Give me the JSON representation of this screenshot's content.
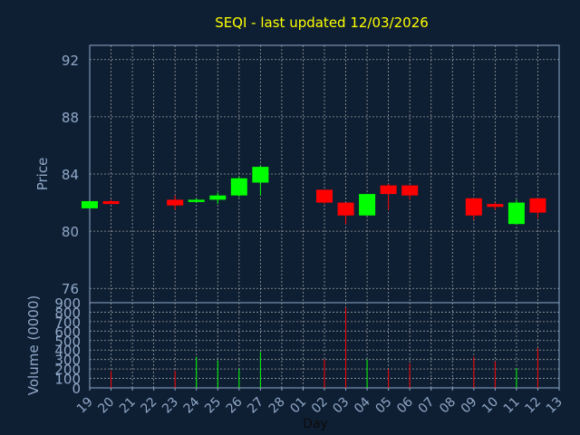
{
  "chart_data": {
    "type": "candlestick",
    "title": "SEQI - last updated 12/03/2026",
    "xlabel": "Day",
    "price_panel": {
      "ylabel": "Price",
      "ylim": [
        75,
        93
      ],
      "yticks": [
        76,
        80,
        84,
        88,
        92
      ],
      "grid": true
    },
    "volume_panel": {
      "ylabel": "Volume (0000)",
      "ylim": [
        0,
        900
      ],
      "yticks": [
        0,
        100,
        200,
        300,
        400,
        500,
        600,
        700,
        800,
        900
      ],
      "grid": true
    },
    "x_ticks": [
      "19",
      "20",
      "21",
      "22",
      "23",
      "24",
      "25",
      "26",
      "27",
      "28",
      "01",
      "02",
      "03",
      "04",
      "05",
      "06",
      "07",
      "08",
      "09",
      "10",
      "11",
      "12",
      "13"
    ],
    "colors": {
      "background": "#0f1f33",
      "up": "#00ff00",
      "down": "#ff0000",
      "axis": "#8fa8c8",
      "title": "#ffff00",
      "grid": "#c8c8c8"
    },
    "candles": [
      {
        "x": "19",
        "open": 81.6,
        "high": 82.1,
        "low": 81.6,
        "close": 82.1,
        "volume": 0
      },
      {
        "x": "20",
        "open": 82.1,
        "high": 82.2,
        "low": 81.9,
        "close": 81.9,
        "volume": 180
      },
      {
        "x": "23",
        "open": 82.2,
        "high": 82.5,
        "low": 81.5,
        "close": 81.8,
        "volume": 180
      },
      {
        "x": "24",
        "open": 82.1,
        "high": 82.3,
        "low": 82.0,
        "close": 82.2,
        "volume": 330
      },
      {
        "x": "25",
        "open": 82.2,
        "high": 82.7,
        "low": 81.9,
        "close": 82.5,
        "volume": 290
      },
      {
        "x": "26",
        "open": 82.5,
        "high": 83.8,
        "low": 82.4,
        "close": 83.7,
        "volume": 200
      },
      {
        "x": "27",
        "open": 83.4,
        "high": 84.6,
        "low": 82.5,
        "close": 84.5,
        "volume": 380
      },
      {
        "x": "02",
        "open": 82.9,
        "high": 82.9,
        "low": 81.9,
        "close": 82.0,
        "volume": 300
      },
      {
        "x": "03",
        "open": 82.0,
        "high": 82.0,
        "low": 80.5,
        "close": 81.1,
        "volume": 850
      },
      {
        "x": "04",
        "open": 81.1,
        "high": 82.6,
        "low": 81.1,
        "close": 82.6,
        "volume": 300
      },
      {
        "x": "05",
        "open": 83.2,
        "high": 83.3,
        "low": 81.5,
        "close": 82.6,
        "volume": 200
      },
      {
        "x": "06",
        "open": 83.2,
        "high": 83.2,
        "low": 82.2,
        "close": 82.5,
        "volume": 260
      },
      {
        "x": "09",
        "open": 82.3,
        "high": 82.3,
        "low": 80.8,
        "close": 81.1,
        "volume": 330
      },
      {
        "x": "10",
        "open": 81.9,
        "high": 82.0,
        "low": 81.5,
        "close": 81.7,
        "volume": 280
      },
      {
        "x": "11",
        "open": 80.5,
        "high": 82.2,
        "low": 80.5,
        "close": 82.0,
        "volume": 210
      },
      {
        "x": "12",
        "open": 82.3,
        "high": 82.3,
        "low": 80.9,
        "close": 81.3,
        "volume": 420
      }
    ]
  }
}
